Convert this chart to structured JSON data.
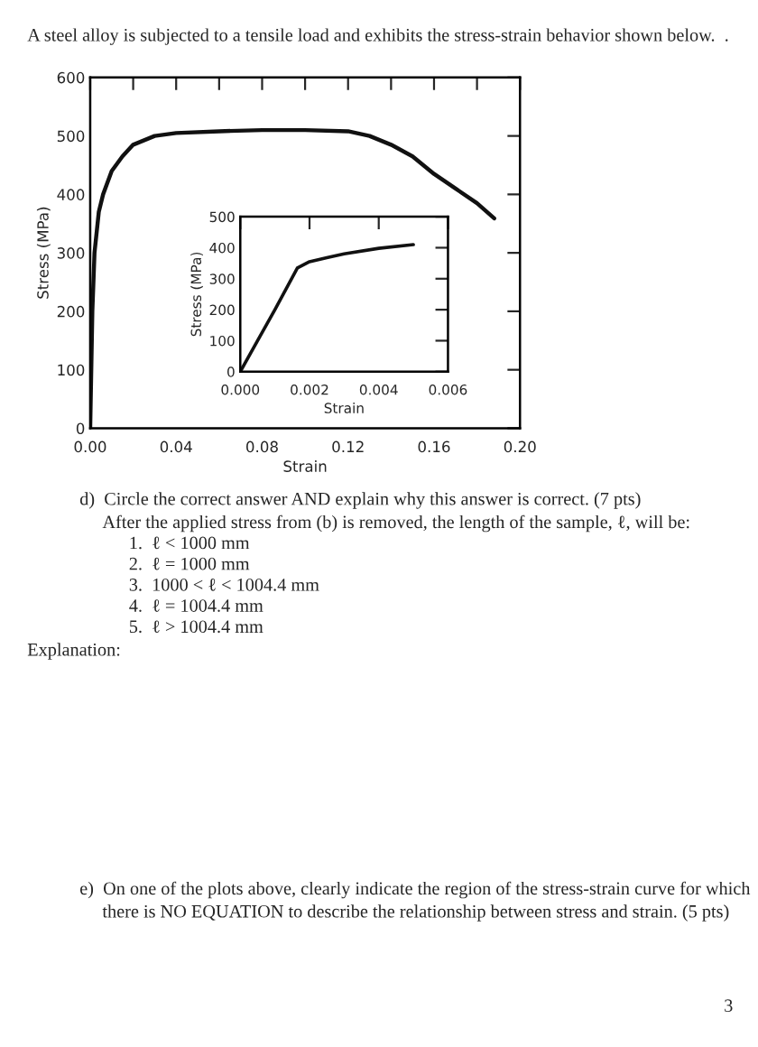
{
  "chart_data": [
    {
      "type": "line",
      "title": "A steel alloy is subjected to a tensile load and exhibits the stress-strain behavior shown below.  .",
      "xlabel": "Strain",
      "ylabel": "Stress (MPa)",
      "series": [
        {
          "color": "#111111",
          "x": [
            0,
            0.001,
            0.002,
            0.004,
            0.006,
            0.01,
            0.015,
            0.02,
            0.03,
            0.04,
            0.06,
            0.08,
            0.1,
            0.12,
            0.13,
            0.14,
            0.15,
            0.16,
            0.17,
            0.18,
            0.188
          ],
          "values": [
            0,
            200,
            300,
            370,
            400,
            440,
            465,
            485,
            500,
            505,
            508,
            510,
            510,
            508,
            500,
            485,
            465,
            435,
            410,
            385,
            359
          ]
        }
      ],
      "xlim": [
        0,
        0.2
      ],
      "ylim": [
        0,
        600
      ],
      "xticks": [
        {
          "value": 0,
          "label": "0.00"
        },
        {
          "value": 0.02,
          "label": null
        },
        0.04,
        {
          "value": 0.06,
          "label": null
        },
        0.08,
        {
          "value": 0.1,
          "label": null
        },
        0.12,
        {
          "value": 0.14,
          "label": null
        },
        0.16,
        {
          "value": 0.18,
          "label": null
        },
        {
          "value": 0.2,
          "label": "0.20"
        }
      ],
      "yticks": [
        0,
        100,
        200,
        300,
        400,
        500,
        600
      ],
      "grid": false,
      "line_style": "solid",
      "annotations": [
        "d)  Circle the correct answer AND explain why this answer is correct. (7 pts)",
        "After the applied stress from (b) is removed, the length of the sample, ℓ, will be:",
        "1.  ℓ < 1000 mm",
        "2.  ℓ = 1000 mm",
        "3.  1000 < ℓ < 1004.4 mm",
        "4.  ℓ = 1004.4 mm",
        "5.  ℓ > 1004.4 mm",
        "Explanation:",
        "e)  On one of the plots above, clearly indicate the region of the stress-strain curve for which",
        "there is NO EQUATION to describe the relationship between stress and strain. (5 pts)",
        "3"
      ]
    },
    {
      "type": "line",
      "xlabel": "Strain",
      "ylabel": "Stress (MPa)",
      "series": [
        {
          "color": "#111111",
          "x": [
            0,
            0.0005,
            0.001,
            0.00165,
            0.002,
            0.0025,
            0.003,
            0.004,
            0.005
          ],
          "values": [
            0,
            100,
            200,
            335,
            355,
            368,
            380,
            398,
            410
          ]
        }
      ],
      "xlim": [
        0,
        0.006
      ],
      "ylim": [
        0,
        500
      ],
      "xticks": [
        {
          "value": 0,
          "label": "0.000"
        },
        0.002,
        0.004,
        0.006
      ],
      "yticks": [
        0,
        100,
        200,
        300,
        400,
        500
      ],
      "grid": false,
      "line_style": "solid"
    }
  ]
}
